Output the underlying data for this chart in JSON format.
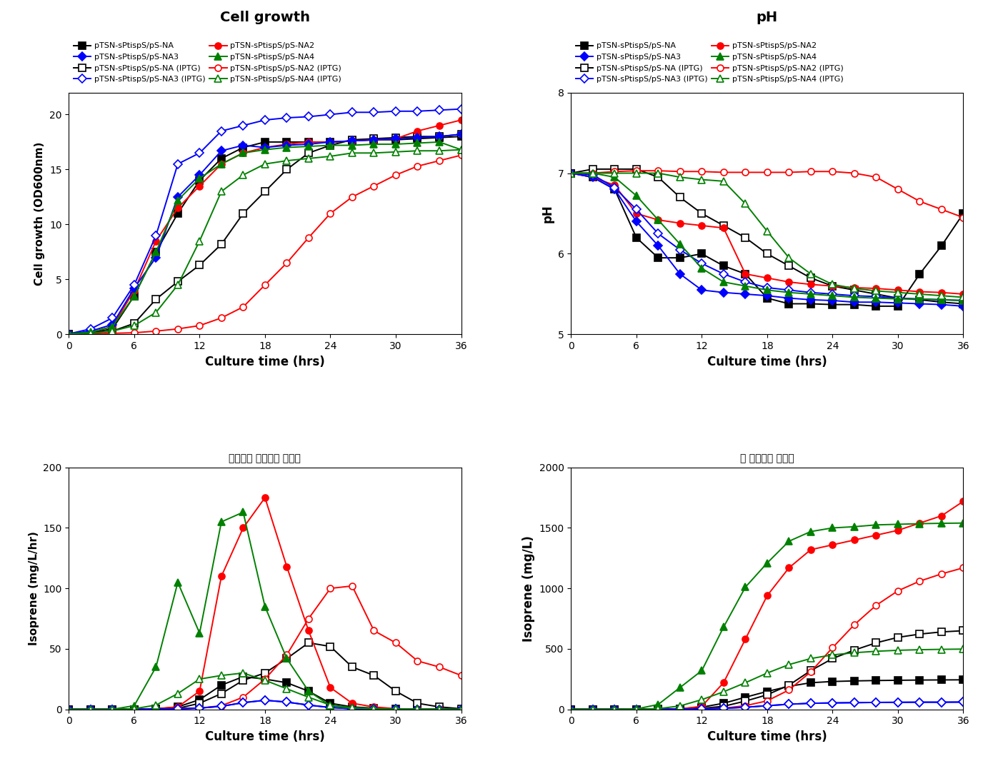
{
  "title_cell": "Cell growth",
  "title_ph": "pH",
  "title_iso_rate": "시간당당 이소프렌 생산량",
  "title_iso_total": "완 이소프렌 생산량",
  "xlabel": "Culture time (hrs)",
  "ylabel_cell": "Cell growth (OD600nm)",
  "ylabel_ph": "pH",
  "ylabel_iso_rate": "Isoprene (mg/L/hr)",
  "ylabel_iso_total": "Isoprene (mg/L)",
  "time": [
    0,
    2,
    4,
    6,
    8,
    10,
    12,
    14,
    16,
    18,
    20,
    22,
    24,
    26,
    28,
    30,
    32,
    34,
    36
  ],
  "cell_NA": [
    0.05,
    0.15,
    0.5,
    3.5,
    7.5,
    11.0,
    14.0,
    16.0,
    17.0,
    17.5,
    17.5,
    17.5,
    17.5,
    17.6,
    17.7,
    17.7,
    17.8,
    17.9,
    18.0
  ],
  "cell_NA_iptg": [
    0.05,
    0.1,
    0.3,
    1.0,
    3.2,
    4.8,
    6.3,
    8.2,
    11.0,
    13.0,
    15.0,
    16.5,
    17.2,
    17.7,
    17.8,
    17.9,
    18.0,
    18.0,
    18.2
  ],
  "cell_NA2": [
    0.05,
    0.2,
    0.7,
    4.0,
    8.5,
    11.5,
    13.5,
    15.5,
    16.5,
    17.0,
    17.3,
    17.5,
    17.5,
    17.6,
    17.7,
    17.8,
    18.5,
    19.0,
    19.5
  ],
  "cell_NA2_iptg": [
    0.05,
    0.05,
    0.1,
    0.15,
    0.3,
    0.5,
    0.8,
    1.5,
    2.5,
    4.5,
    6.5,
    8.8,
    11.0,
    12.5,
    13.5,
    14.5,
    15.3,
    15.8,
    16.3
  ],
  "cell_NA3": [
    0.05,
    0.3,
    0.9,
    4.2,
    7.0,
    12.5,
    14.5,
    16.7,
    17.2,
    17.0,
    17.2,
    17.3,
    17.5,
    17.6,
    17.7,
    17.8,
    17.9,
    18.0,
    18.2
  ],
  "cell_NA3_iptg": [
    0.05,
    0.5,
    1.5,
    4.5,
    9.0,
    15.5,
    16.5,
    18.5,
    19.0,
    19.5,
    19.7,
    19.8,
    20.0,
    20.2,
    20.2,
    20.3,
    20.3,
    20.4,
    20.5
  ],
  "cell_NA4": [
    0.05,
    0.2,
    0.7,
    3.5,
    7.5,
    12.2,
    14.2,
    15.5,
    16.5,
    16.8,
    17.0,
    17.1,
    17.2,
    17.2,
    17.3,
    17.3,
    17.4,
    17.5,
    16.8
  ],
  "cell_NA4_iptg": [
    0.05,
    0.1,
    0.3,
    0.8,
    2.0,
    4.5,
    8.5,
    13.0,
    14.5,
    15.5,
    15.8,
    16.0,
    16.2,
    16.5,
    16.5,
    16.6,
    16.7,
    16.7,
    16.8
  ],
  "ph_NA": [
    7.0,
    6.95,
    6.8,
    6.2,
    5.95,
    5.95,
    6.0,
    5.85,
    5.75,
    5.45,
    5.38,
    5.38,
    5.37,
    5.37,
    5.35,
    5.35,
    5.75,
    6.1,
    6.5
  ],
  "ph_NA_iptg": [
    7.0,
    7.05,
    7.05,
    7.05,
    6.95,
    6.7,
    6.5,
    6.35,
    6.2,
    6.0,
    5.85,
    5.7,
    5.6,
    5.55,
    5.5,
    5.45,
    5.43,
    5.4,
    5.38
  ],
  "ph_NA2": [
    7.0,
    6.95,
    6.85,
    6.5,
    6.42,
    6.38,
    6.35,
    6.32,
    5.75,
    5.7,
    5.65,
    5.62,
    5.6,
    5.58,
    5.57,
    5.55,
    5.53,
    5.52,
    5.5
  ],
  "ph_NA2_iptg": [
    7.0,
    7.0,
    7.02,
    7.03,
    7.03,
    7.02,
    7.02,
    7.01,
    7.01,
    7.01,
    7.01,
    7.02,
    7.02,
    7.0,
    6.95,
    6.8,
    6.65,
    6.55,
    6.45
  ],
  "ph_NA3": [
    7.0,
    6.95,
    6.8,
    6.4,
    6.1,
    5.75,
    5.55,
    5.52,
    5.5,
    5.48,
    5.45,
    5.43,
    5.42,
    5.4,
    5.4,
    5.39,
    5.38,
    5.37,
    5.35
  ],
  "ph_NA3_iptg": [
    7.0,
    6.98,
    6.82,
    6.55,
    6.25,
    6.05,
    5.88,
    5.75,
    5.65,
    5.58,
    5.55,
    5.52,
    5.5,
    5.48,
    5.47,
    5.45,
    5.44,
    5.43,
    5.42
  ],
  "ph_NA4": [
    7.0,
    7.0,
    6.95,
    6.72,
    6.42,
    6.12,
    5.82,
    5.65,
    5.6,
    5.55,
    5.52,
    5.5,
    5.48,
    5.46,
    5.45,
    5.44,
    5.44,
    5.43,
    5.42
  ],
  "ph_NA4_iptg": [
    7.0,
    7.0,
    7.0,
    7.0,
    7.0,
    6.95,
    6.92,
    6.9,
    6.62,
    6.28,
    5.95,
    5.75,
    5.62,
    5.57,
    5.54,
    5.52,
    5.5,
    5.48,
    5.46
  ],
  "isoR_NA": [
    0,
    0,
    0,
    0,
    0.5,
    2.0,
    8.0,
    20.0,
    27.0,
    25.0,
    22.0,
    15.0,
    5.0,
    2.0,
    1.0,
    0.3,
    0.1,
    0.05,
    0.0
  ],
  "isoR_NA_iptg": [
    0,
    0,
    0,
    0,
    0.2,
    0.8,
    5.0,
    13.0,
    24.0,
    30.0,
    42.0,
    55.0,
    52.0,
    35.0,
    28.0,
    15.0,
    5.0,
    2.0,
    0.5
  ],
  "isoR_NA2": [
    0,
    0,
    0,
    0,
    0.3,
    2.0,
    15.0,
    110.0,
    150.0,
    175.0,
    118.0,
    65.0,
    18.0,
    5.0,
    2.0,
    0.5,
    0.2,
    0.1,
    0.0
  ],
  "isoR_NA2_iptg": [
    0,
    0,
    0,
    0,
    0.1,
    0.3,
    1.0,
    3.0,
    10.0,
    25.0,
    45.0,
    75.0,
    100.0,
    102.0,
    65.0,
    55.0,
    40.0,
    35.0,
    28.0
  ],
  "isoR_NA3": [
    0,
    0,
    0,
    0,
    0.2,
    0.5,
    1.0,
    2.5,
    5.5,
    7.5,
    6.0,
    3.5,
    1.5,
    0.5,
    0.2,
    0.1,
    0.0,
    0.0,
    0.0
  ],
  "isoR_NA3_iptg": [
    0,
    0,
    0,
    0,
    0.2,
    0.5,
    1.0,
    2.5,
    5.5,
    7.5,
    6.0,
    3.5,
    1.5,
    0.5,
    0.2,
    0.1,
    0.0,
    0.0,
    0.0
  ],
  "isoR_NA4": [
    0,
    0,
    0,
    3.0,
    35.0,
    105.0,
    63.0,
    155.0,
    163.0,
    85.0,
    42.0,
    15.0,
    3.0,
    1.0,
    0.5,
    0.2,
    0.1,
    0.1,
    0.0
  ],
  "isoR_NA4_iptg": [
    0,
    0,
    0,
    0.5,
    3.5,
    13.0,
    25.0,
    28.0,
    30.0,
    24.0,
    17.0,
    10.0,
    3.5,
    1.5,
    0.5,
    0.2,
    0.1,
    0.05,
    0.0
  ],
  "isoT_NA": [
    0,
    0,
    0,
    0,
    1,
    5,
    18,
    50,
    100,
    148,
    190,
    220,
    230,
    235,
    238,
    240,
    242,
    243,
    244
  ],
  "isoT_NA_iptg": [
    0,
    0,
    0,
    0,
    0.5,
    2,
    8,
    25,
    68,
    120,
    200,
    320,
    420,
    490,
    550,
    595,
    622,
    640,
    650
  ],
  "isoT_NA2": [
    0,
    0,
    0,
    0,
    0.5,
    3,
    25,
    220,
    580,
    940,
    1170,
    1320,
    1360,
    1400,
    1440,
    1480,
    1540,
    1600,
    1720
  ],
  "isoT_NA2_iptg": [
    0,
    0,
    0,
    0,
    0.3,
    1,
    3,
    9,
    30,
    70,
    160,
    310,
    510,
    700,
    860,
    980,
    1060,
    1120,
    1170
  ],
  "isoT_NA3": [
    0,
    0,
    0,
    0,
    0.3,
    1,
    3,
    8,
    17,
    30,
    42,
    50,
    53,
    55,
    57,
    58,
    59,
    59,
    60
  ],
  "isoT_NA3_iptg": [
    0,
    0,
    0,
    0,
    0.3,
    1,
    3,
    8,
    17,
    30,
    42,
    50,
    53,
    55,
    57,
    58,
    59,
    59,
    60
  ],
  "isoT_NA4": [
    0,
    0,
    0,
    3,
    40,
    180,
    320,
    680,
    1010,
    1210,
    1390,
    1470,
    1500,
    1510,
    1525,
    1530,
    1535,
    1538,
    1540
  ],
  "isoT_NA4_iptg": [
    0,
    0,
    0,
    0.5,
    5,
    28,
    80,
    145,
    220,
    300,
    370,
    420,
    450,
    468,
    480,
    488,
    493,
    496,
    498
  ],
  "colors": {
    "NA": "#000000",
    "NA_iptg": "#000000",
    "NA2": "#ff0000",
    "NA2_iptg": "#ff0000",
    "NA3": "#0000ff",
    "NA3_iptg": "#0000ff",
    "NA4": "#008000",
    "NA4_iptg": "#008000"
  },
  "legend_labels": [
    "pTSN-sPtispS/pS-NA",
    "pTSN-sPtispS/pS-NA (IPTG)",
    "pTSN-sPtispS/pS-NA2",
    "pTSN-sPtispS/pS-NA2 (IPTG)",
    "pTSN-sPtispS/pS-NA3",
    "pTSN-sPtispS/pS-NA3 (IPTG)",
    "pTSN-sPtispS/pS-NA4",
    "pTSN-sPtispS/pS-NA4 (IPTG)"
  ],
  "title_iso_rate_kr": "시간당당 이소프렌 생산량",
  "title_iso_total_kr": "완 이소프렌 생산량"
}
